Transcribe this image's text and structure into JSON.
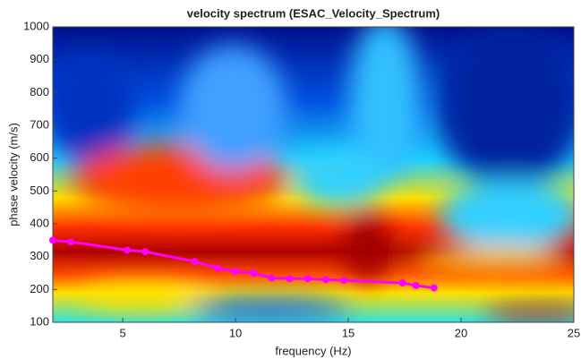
{
  "chart_data": {
    "type": "line",
    "title": "velocity spectrum (ESAC_Velocity_Spectrum)",
    "x_label": "frequency (Hz)",
    "y_label": "phase velocity (m/s)",
    "xlim": [
      1.9,
      25
    ],
    "xticks": [
      5,
      10,
      15,
      20,
      25
    ],
    "ylim": [
      100,
      1000
    ],
    "yticks": [
      100,
      200,
      300,
      400,
      500,
      600,
      700,
      800,
      900,
      1000
    ],
    "series": [
      {
        "color": "#ff00ff",
        "x": [
          1.9,
          2.7,
          5.2,
          6.0,
          8.2,
          9.2,
          10.0,
          10.8,
          11.6,
          12.4,
          13.2,
          14.0,
          14.8,
          17.4,
          18.0,
          18.8
        ],
        "values": [
          350,
          345,
          320,
          315,
          285,
          265,
          255,
          250,
          235,
          233,
          233,
          230,
          228,
          220,
          212,
          205
        ]
      }
    ]
  }
}
